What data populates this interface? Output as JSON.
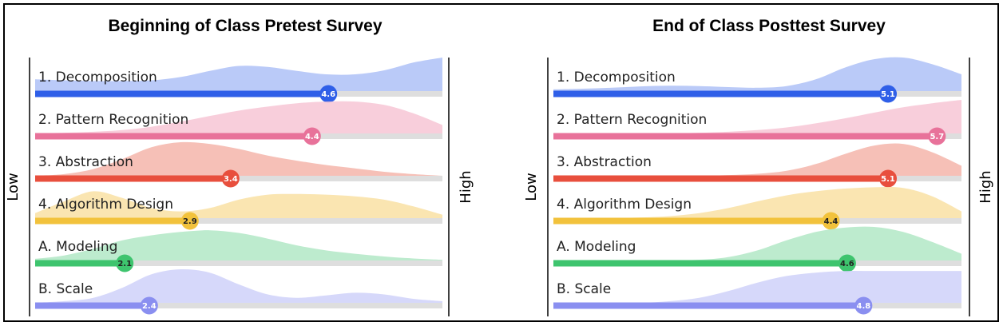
{
  "chart_data": [
    {
      "type": "bar",
      "title": "Beginning of Class Pretest Survey",
      "low_label": "Low",
      "high_label": "High",
      "rows": [
        {
          "label": "1. Decomposition",
          "value": 4.6,
          "value_text": "4.6",
          "color": "#2f5fe8",
          "fill": "#aec1f7",
          "text_color": "#ffffff",
          "density": [
            0.35,
            0.32,
            0.3,
            0.3,
            0.32,
            0.42,
            0.6,
            0.75,
            0.72,
            0.6,
            0.5,
            0.5,
            0.62,
            0.85,
            1.0
          ]
        },
        {
          "label": "2. Pattern Recognition",
          "value": 4.4,
          "value_text": "4.4",
          "color": "#e8729a",
          "fill": "#f7c5d5",
          "text_color": "#ffffff",
          "density": [
            0.0,
            0.02,
            0.05,
            0.1,
            0.2,
            0.35,
            0.52,
            0.68,
            0.8,
            0.9,
            0.95,
            0.95,
            0.85,
            0.6,
            0.25
          ]
        },
        {
          "label": "3. Abstraction",
          "value": 3.4,
          "value_text": "3.4",
          "color": "#e84f3d",
          "fill": "#f5b5aa",
          "text_color": "#ffffff",
          "density": [
            0.0,
            0.05,
            0.2,
            0.5,
            0.85,
            1.0,
            0.95,
            0.8,
            0.6,
            0.45,
            0.32,
            0.22,
            0.12,
            0.05,
            0.0
          ]
        },
        {
          "label": "4. Algorithm Design",
          "value": 2.9,
          "value_text": "2.9",
          "color": "#f2c23c",
          "fill": "#f9e0a3",
          "text_color": "#222222",
          "density": [
            0.15,
            0.5,
            0.8,
            0.6,
            0.3,
            0.2,
            0.3,
            0.55,
            0.7,
            0.72,
            0.7,
            0.65,
            0.55,
            0.35,
            0.1
          ]
        },
        {
          "label": "A. Modeling",
          "value": 2.1,
          "value_text": "2.1",
          "color": "#3ec46e",
          "fill": "#b2e8c5",
          "text_color": "#222222",
          "density": [
            0.05,
            0.15,
            0.35,
            0.6,
            0.75,
            0.85,
            0.9,
            0.82,
            0.65,
            0.45,
            0.3,
            0.2,
            0.12,
            0.06,
            0.02
          ]
        },
        {
          "label": "B. Scale",
          "value": 2.4,
          "value_text": "2.4",
          "color": "#8a8ff0",
          "fill": "#cfd1f9",
          "text_color": "#ffffff",
          "density": [
            0.0,
            0.05,
            0.15,
            0.45,
            0.85,
            1.0,
            0.9,
            0.55,
            0.25,
            0.15,
            0.22,
            0.3,
            0.25,
            0.12,
            0.05
          ]
        }
      ]
    },
    {
      "type": "bar",
      "title": "End of Class Posttest Survey",
      "low_label": "Low",
      "high_label": "High",
      "rows": [
        {
          "label": "1. Decomposition",
          "value": 5.1,
          "value_text": "5.1",
          "color": "#2f5fe8",
          "fill": "#aec1f7",
          "text_color": "#ffffff",
          "density": [
            0.05,
            0.07,
            0.1,
            0.14,
            0.16,
            0.15,
            0.12,
            0.1,
            0.15,
            0.35,
            0.7,
            0.95,
            1.0,
            0.8,
            0.5
          ]
        },
        {
          "label": "2. Pattern Recognition",
          "value": 5.7,
          "value_text": "5.7",
          "color": "#e8729a",
          "fill": "#f7c5d5",
          "text_color": "#ffffff",
          "density": [
            0.0,
            0.0,
            0.0,
            0.0,
            0.0,
            0.02,
            0.05,
            0.1,
            0.18,
            0.3,
            0.45,
            0.62,
            0.78,
            0.9,
            1.0
          ]
        },
        {
          "label": "3. Abstraction",
          "value": 5.1,
          "value_text": "5.1",
          "color": "#e84f3d",
          "fill": "#f5b5aa",
          "text_color": "#ffffff",
          "density": [
            0.0,
            0.0,
            0.0,
            0.0,
            0.0,
            0.0,
            0.02,
            0.06,
            0.15,
            0.35,
            0.65,
            0.9,
            0.95,
            0.7,
            0.3
          ]
        },
        {
          "label": "4. Algorithm Design",
          "value": 4.4,
          "value_text": "4.4",
          "color": "#f2c23c",
          "fill": "#f9e0a3",
          "text_color": "#222222",
          "density": [
            0.0,
            0.0,
            0.0,
            0.02,
            0.06,
            0.15,
            0.3,
            0.5,
            0.68,
            0.8,
            0.88,
            0.92,
            0.9,
            0.65,
            0.2
          ]
        },
        {
          "label": "A. Modeling",
          "value": 4.6,
          "value_text": "4.6",
          "color": "#3ec46e",
          "fill": "#b2e8c5",
          "text_color": "#222222",
          "density": [
            0.0,
            0.0,
            0.0,
            0.0,
            0.0,
            0.02,
            0.1,
            0.3,
            0.6,
            0.85,
            0.98,
            1.0,
            0.85,
            0.55,
            0.2
          ]
        },
        {
          "label": "B. Scale",
          "value": 4.8,
          "value_text": "4.8",
          "color": "#8a8ff0",
          "fill": "#cfd1f9",
          "text_color": "#ffffff",
          "density": [
            0.0,
            0.0,
            0.0,
            0.0,
            0.05,
            0.15,
            0.35,
            0.6,
            0.8,
            0.9,
            0.95,
            0.95,
            0.95,
            0.95,
            0.95
          ]
        }
      ]
    }
  ]
}
